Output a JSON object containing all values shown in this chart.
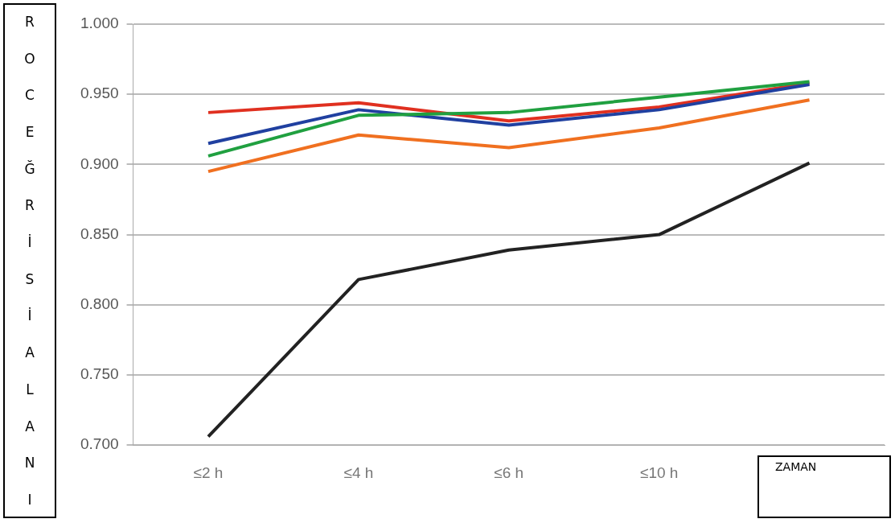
{
  "chart_data": {
    "type": "line",
    "xlabel": "ZAMAN",
    "ylabel": "ROC EĞRİSİ ALANI",
    "categories": [
      "≤2 h",
      "≤4 h",
      "≤6 h",
      "≤10 h",
      null
    ],
    "series": [
      {
        "color": "#222222",
        "values": [
          0.706,
          0.818,
          0.839,
          0.85,
          0.901
        ]
      },
      {
        "color": "#f07020",
        "values": [
          0.895,
          0.921,
          0.912,
          0.926,
          0.946
        ]
      },
      {
        "color": "#20a040",
        "values": [
          0.906,
          0.935,
          0.937,
          0.948,
          0.959
        ]
      },
      {
        "color": "#2040a0",
        "values": [
          0.915,
          0.939,
          0.928,
          0.939,
          0.957
        ]
      },
      {
        "color": "#e03020",
        "values": [
          0.937,
          0.944,
          0.931,
          0.941,
          0.958
        ]
      }
    ],
    "ylim": [
      0.7,
      1.0
    ],
    "yticks": [
      {
        "value": 0.7,
        "label": "0.700"
      },
      {
        "value": 0.75,
        "label": "0.750"
      },
      {
        "value": 0.8,
        "label": "0.800"
      },
      {
        "value": 0.85,
        "label": "0.850"
      },
      {
        "value": 0.9,
        "label": "0.900"
      },
      {
        "value": 0.95,
        "label": "0.950"
      },
      {
        "value": 1.0,
        "label": "1.000"
      }
    ],
    "grid": "y",
    "legend": false,
    "marker": "none",
    "line_style": "solid"
  }
}
